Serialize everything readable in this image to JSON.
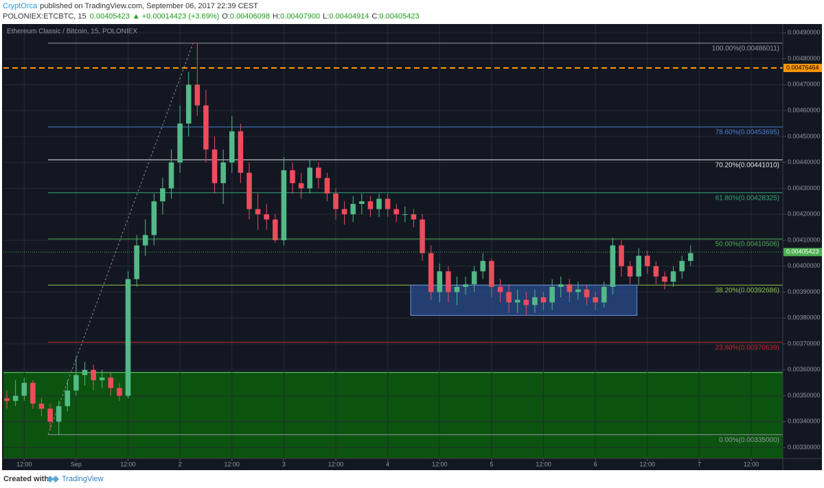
{
  "header": {
    "author": "CryptOrca",
    "published": "published on TradingView.com, September 06, 2017 22:39 CEST",
    "symbol": "POLONIEX:ETCBTC, 15",
    "last": "0.00405423",
    "change": "▲ +0.00014423 (+3.69%)",
    "o_label": "O:",
    "o": "0.00406098",
    "h_label": "H:",
    "h": "0.00407900",
    "l_label": "L:",
    "l": "0.00404914",
    "c_label": "C:",
    "c": "0.00405423"
  },
  "footer": {
    "created": "Created with",
    "brand": "TradingView"
  },
  "chart_data": {
    "type": "candlestick",
    "title": "Ethereum Classic / Bitcoin, 15, POLONIEX",
    "xlim": [
      7.2,
      187.3
    ],
    "ylim": [
      0.003258,
      0.004926
    ],
    "xticks": [
      {
        "value": 12,
        "label": "12:00"
      },
      {
        "value": 24,
        "label": "Sep"
      },
      {
        "value": 36,
        "label": "12:00"
      },
      {
        "value": 48,
        "label": "2"
      },
      {
        "value": 60,
        "label": "12:00"
      },
      {
        "value": 72,
        "label": "3"
      },
      {
        "value": 84,
        "label": "12:00"
      },
      {
        "value": 96,
        "label": "4"
      },
      {
        "value": 108,
        "label": "12:00"
      },
      {
        "value": 120,
        "label": "5"
      },
      {
        "value": 132,
        "label": "12:00"
      },
      {
        "value": 144,
        "label": "6"
      },
      {
        "value": 156,
        "label": "12:00"
      },
      {
        "value": 168,
        "label": "7"
      },
      {
        "value": 180,
        "label": "12:00"
      }
    ],
    "yticks": [
      {
        "value": 0.0033,
        "label": "0.00330000"
      },
      {
        "value": 0.0034,
        "label": "0.00340000"
      },
      {
        "value": 0.0035,
        "label": "0.00350000"
      },
      {
        "value": 0.0036,
        "label": "0.00360000"
      },
      {
        "value": 0.0037,
        "label": "0.00370000"
      },
      {
        "value": 0.0038,
        "label": "0.00380000"
      },
      {
        "value": 0.0039,
        "label": "0.00390000"
      },
      {
        "value": 0.004,
        "label": "0.00400000"
      },
      {
        "value": 0.0041,
        "label": "0.00410000"
      },
      {
        "value": 0.0042,
        "label": "0.00420000"
      },
      {
        "value": 0.0043,
        "label": "0.00430000"
      },
      {
        "value": 0.0044,
        "label": "0.00440000"
      },
      {
        "value": 0.0045,
        "label": "0.00450000"
      },
      {
        "value": 0.0046,
        "label": "0.00460000"
      },
      {
        "value": 0.0047,
        "label": "0.00470000"
      },
      {
        "value": 0.0048,
        "label": "0.00480000"
      },
      {
        "value": 0.0049,
        "label": "0.00490000"
      }
    ],
    "grid": true,
    "up_color": "#53b987",
    "down_color": "#eb4d5c",
    "x": [
      8,
      10,
      12,
      14,
      16,
      18,
      20,
      22,
      24,
      26,
      28,
      30,
      32,
      34,
      36,
      38,
      40,
      42,
      44,
      46,
      48,
      50,
      52,
      54,
      56,
      58,
      60,
      62,
      64,
      66,
      68,
      70,
      72,
      74,
      76,
      78,
      80,
      82,
      84,
      86,
      88,
      90,
      92,
      94,
      96,
      98,
      100,
      102,
      104,
      106,
      108,
      110,
      112,
      114,
      116,
      118,
      120,
      122,
      124,
      126,
      128,
      130,
      132,
      134,
      136,
      138,
      140,
      142,
      144,
      146,
      148,
      150,
      152,
      154,
      156,
      158,
      160,
      162,
      164,
      166
    ],
    "open": [
      0.00349,
      0.00348,
      0.0035,
      0.00355,
      0.00347,
      0.00345,
      0.0034,
      0.00346,
      0.00352,
      0.00358,
      0.0036,
      0.00356,
      0.00357,
      0.00353,
      0.0035,
      0.00395,
      0.00408,
      0.00412,
      0.00425,
      0.0043,
      0.0044,
      0.00455,
      0.0047,
      0.00462,
      0.00445,
      0.00432,
      0.0044,
      0.00452,
      0.00436,
      0.00422,
      0.0042,
      0.00418,
      0.0041,
      0.00437,
      0.00432,
      0.0043,
      0.00438,
      0.00434,
      0.00428,
      0.00422,
      0.0042,
      0.00424,
      0.00425,
      0.00422,
      0.00426,
      0.00422,
      0.0042,
      0.0042,
      0.00418,
      0.00405,
      0.0039,
      0.00398,
      0.0039,
      0.00392,
      0.00393,
      0.00398,
      0.00402,
      0.00392,
      0.0039,
      0.00386,
      0.00387,
      0.00385,
      0.00388,
      0.00386,
      0.00392,
      0.00393,
      0.0039,
      0.00391,
      0.00388,
      0.00386,
      0.00392,
      0.00408,
      0.004,
      0.00396,
      0.00404,
      0.004,
      0.00396,
      0.00394,
      0.00398,
      0.00402
    ],
    "high": [
      0.00352,
      0.00356,
      0.00357,
      0.00356,
      0.00349,
      0.00347,
      0.00348,
      0.00356,
      0.00365,
      0.00363,
      0.00362,
      0.0036,
      0.00359,
      0.00355,
      0.00398,
      0.00412,
      0.00418,
      0.00428,
      0.00434,
      0.00445,
      0.00462,
      0.00475,
      0.00486,
      0.00468,
      0.0045,
      0.00445,
      0.00458,
      0.00455,
      0.0044,
      0.00428,
      0.00424,
      0.0042,
      0.00442,
      0.0044,
      0.00436,
      0.00441,
      0.0044,
      0.00436,
      0.0043,
      0.00425,
      0.00427,
      0.00428,
      0.00427,
      0.00428,
      0.00428,
      0.00424,
      0.00423,
      0.00422,
      0.0042,
      0.00408,
      0.00401,
      0.004,
      0.00396,
      0.00396,
      0.004,
      0.00405,
      0.00403,
      0.00395,
      0.00393,
      0.00391,
      0.0039,
      0.00391,
      0.0039,
      0.00395,
      0.00396,
      0.00395,
      0.00394,
      0.00393,
      0.0039,
      0.00394,
      0.00411,
      0.0041,
      0.00402,
      0.00407,
      0.00406,
      0.00402,
      0.00398,
      0.004,
      0.00404,
      0.00408
    ],
    "low": [
      0.00345,
      0.00346,
      0.00348,
      0.00345,
      0.00342,
      0.00337,
      0.00335,
      0.00344,
      0.0035,
      0.00354,
      0.00352,
      0.00353,
      0.0035,
      0.00348,
      0.00349,
      0.00392,
      0.00404,
      0.00408,
      0.0042,
      0.00426,
      0.00436,
      0.0045,
      0.00458,
      0.0044,
      0.00428,
      0.00424,
      0.00436,
      0.00432,
      0.00418,
      0.00414,
      0.00414,
      0.00409,
      0.00408,
      0.00428,
      0.00426,
      0.00428,
      0.0043,
      0.00425,
      0.00418,
      0.00416,
      0.00417,
      0.0042,
      0.00419,
      0.00419,
      0.00419,
      0.00417,
      0.00417,
      0.00415,
      0.00402,
      0.00387,
      0.00386,
      0.00386,
      0.00385,
      0.00389,
      0.0039,
      0.00395,
      0.00388,
      0.00386,
      0.00382,
      0.00382,
      0.00381,
      0.00382,
      0.00383,
      0.00383,
      0.00388,
      0.00386,
      0.00387,
      0.00385,
      0.00383,
      0.00384,
      0.00389,
      0.00396,
      0.00393,
      0.00393,
      0.00397,
      0.00393,
      0.00391,
      0.00392,
      0.00395,
      0.004
    ],
    "close": [
      0.00348,
      0.0035,
      0.00355,
      0.00347,
      0.00345,
      0.0034,
      0.00346,
      0.00352,
      0.00358,
      0.0036,
      0.00356,
      0.00357,
      0.00353,
      0.0035,
      0.00395,
      0.00408,
      0.00412,
      0.00425,
      0.0043,
      0.0044,
      0.00455,
      0.0047,
      0.00462,
      0.00445,
      0.00432,
      0.0044,
      0.00452,
      0.00436,
      0.00422,
      0.0042,
      0.00418,
      0.0041,
      0.00437,
      0.00432,
      0.0043,
      0.00438,
      0.00434,
      0.00428,
      0.00422,
      0.0042,
      0.00424,
      0.00425,
      0.00422,
      0.00426,
      0.00422,
      0.0042,
      0.0042,
      0.00418,
      0.00405,
      0.0039,
      0.00398,
      0.0039,
      0.00392,
      0.00393,
      0.00398,
      0.00402,
      0.00392,
      0.0039,
      0.00386,
      0.00387,
      0.00385,
      0.00388,
      0.00386,
      0.00392,
      0.00393,
      0.0039,
      0.00391,
      0.00388,
      0.00386,
      0.00392,
      0.00408,
      0.004,
      0.00396,
      0.00404,
      0.004,
      0.00396,
      0.00394,
      0.00398,
      0.00402,
      0.00405
    ],
    "fib_levels": [
      {
        "label": "100.00%(0.00486011)",
        "value": 0.00486011,
        "color": "#9598a1"
      },
      {
        "label": "78.60%(0.00453695)",
        "value": 0.00453695,
        "color": "#4a7fd4"
      },
      {
        "label": "70.20%(0.00441010)",
        "value": 0.0044101,
        "color": "#e8e8e8"
      },
      {
        "label": "61.80%(0.00428325)",
        "value": 0.00428325,
        "color": "#35a776"
      },
      {
        "label": "50.00%(0.00410506)",
        "value": 0.00410506,
        "color": "#4caf50"
      },
      {
        "label": "38.20%(0.00392686)",
        "value": 0.00392686,
        "color": "#8bc34a"
      },
      {
        "label": "23.60%(0.00370639)",
        "value": 0.00370639,
        "color": "#c62828"
      },
      {
        "label": "0.00%(0.00335000)",
        "value": 0.00335,
        "color": "#9598a1"
      }
    ],
    "trendline": {
      "x": [
        17.5,
        51
      ],
      "y": [
        0.00335,
        0.00486
      ]
    },
    "support_zone": {
      "top": 0.00359,
      "color": "#0b5e0b"
    },
    "range_box": {
      "x": [
        101.3,
        153.6
      ],
      "y": [
        0.00381,
        0.00392686
      ],
      "color": "#2a4c8c"
    },
    "alert_line": {
      "value": 0.00476464,
      "color": "#ff9800"
    },
    "last_price": {
      "value": 0.00405423,
      "color": "#4caf50"
    }
  }
}
